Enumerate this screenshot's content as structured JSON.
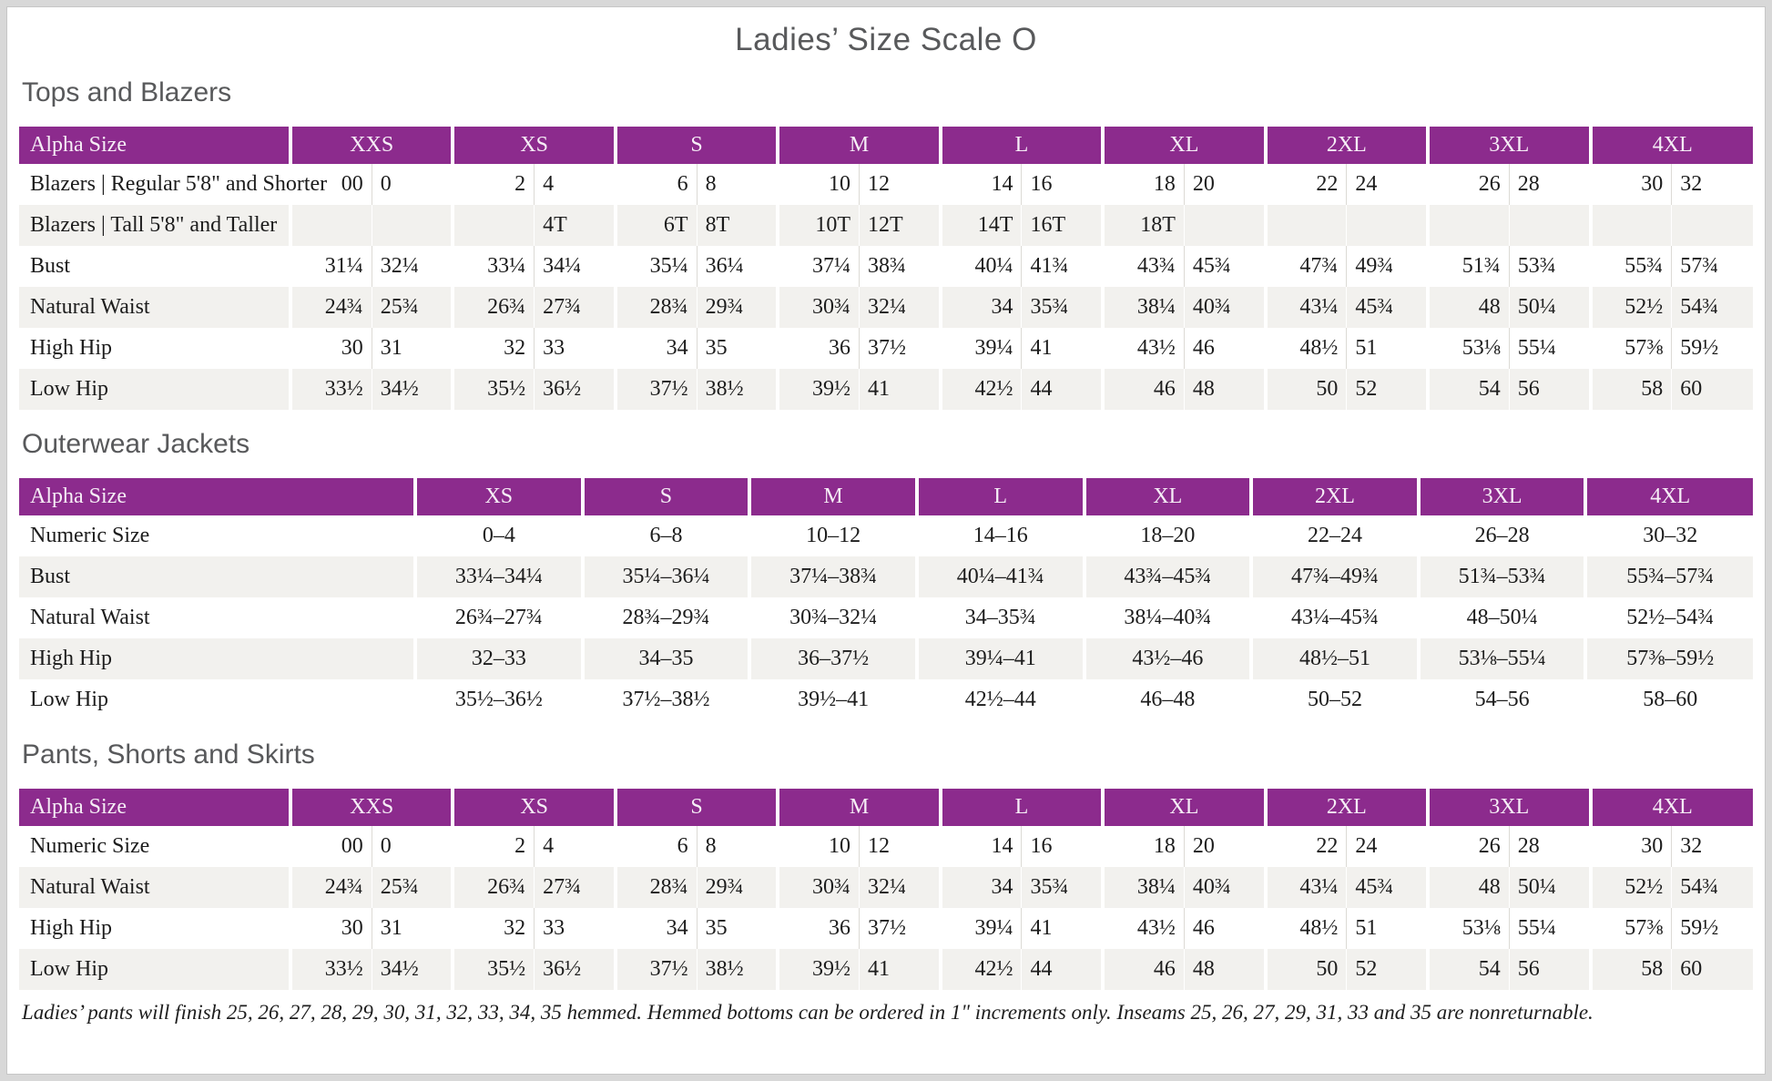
{
  "title": "Ladies’ Size Scale O",
  "accent_color": "#8c2b8d",
  "shade_row_color": "#f2f1ee",
  "tables": [
    {
      "heading": "Tops and Blazers",
      "type": "paired",
      "label_header": "Alpha Size",
      "sizes": [
        "XXS",
        "XS",
        "S",
        "M",
        "L",
        "XL",
        "2XL",
        "3XL",
        "4XL"
      ],
      "rows": [
        {
          "label": "Blazers | Regular 5'8\" and Shorter",
          "values": [
            [
              "00",
              "0"
            ],
            [
              "2",
              "4"
            ],
            [
              "6",
              "8"
            ],
            [
              "10",
              "12"
            ],
            [
              "14",
              "16"
            ],
            [
              "18",
              "20"
            ],
            [
              "22",
              "24"
            ],
            [
              "26",
              "28"
            ],
            [
              "30",
              "32"
            ]
          ]
        },
        {
          "label": "Blazers | Tall 5'8\" and Taller",
          "values": [
            [
              "",
              ""
            ],
            [
              "",
              "4T"
            ],
            [
              "6T",
              "8T"
            ],
            [
              "10T",
              "12T"
            ],
            [
              "14T",
              "16T"
            ],
            [
              "18T",
              ""
            ],
            [
              "",
              ""
            ],
            [
              "",
              ""
            ],
            [
              "",
              ""
            ]
          ]
        },
        {
          "label": "Bust",
          "values": [
            [
              "31¼",
              "32¼"
            ],
            [
              "33¼",
              "34¼"
            ],
            [
              "35¼",
              "36¼"
            ],
            [
              "37¼",
              "38¾"
            ],
            [
              "40¼",
              "41¾"
            ],
            [
              "43¾",
              "45¾"
            ],
            [
              "47¾",
              "49¾"
            ],
            [
              "51¾",
              "53¾"
            ],
            [
              "55¾",
              "57¾"
            ]
          ]
        },
        {
          "label": "Natural Waist",
          "values": [
            [
              "24¾",
              "25¾"
            ],
            [
              "26¾",
              "27¾"
            ],
            [
              "28¾",
              "29¾"
            ],
            [
              "30¾",
              "32¼"
            ],
            [
              "34",
              "35¾"
            ],
            [
              "38¼",
              "40¾"
            ],
            [
              "43¼",
              "45¾"
            ],
            [
              "48",
              "50¼"
            ],
            [
              "52½",
              "54¾"
            ]
          ]
        },
        {
          "label": "High Hip",
          "values": [
            [
              "30",
              "31"
            ],
            [
              "32",
              "33"
            ],
            [
              "34",
              "35"
            ],
            [
              "36",
              "37½"
            ],
            [
              "39¼",
              "41"
            ],
            [
              "43½",
              "46"
            ],
            [
              "48½",
              "51"
            ],
            [
              "53⅛",
              "55¼"
            ],
            [
              "57⅜",
              "59½"
            ]
          ]
        },
        {
          "label": "Low Hip",
          "values": [
            [
              "33½",
              "34½"
            ],
            [
              "35½",
              "36½"
            ],
            [
              "37½",
              "38½"
            ],
            [
              "39½",
              "41"
            ],
            [
              "42½",
              "44"
            ],
            [
              "46",
              "48"
            ],
            [
              "50",
              "52"
            ],
            [
              "54",
              "56"
            ],
            [
              "58",
              "60"
            ]
          ]
        }
      ]
    },
    {
      "heading": "Outerwear Jackets",
      "type": "single",
      "label_header": "Alpha Size",
      "sizes": [
        "XS",
        "S",
        "M",
        "L",
        "XL",
        "2XL",
        "3XL",
        "4XL"
      ],
      "rows": [
        {
          "label": "Numeric Size",
          "values": [
            "0–4",
            "6–8",
            "10–12",
            "14–16",
            "18–20",
            "22–24",
            "26–28",
            "30–32"
          ]
        },
        {
          "label": "Bust",
          "values": [
            "33¼–34¼",
            "35¼–36¼",
            "37¼–38¾",
            "40¼–41¾",
            "43¾–45¾",
            "47¾–49¾",
            "51¾–53¾",
            "55¾–57¾"
          ]
        },
        {
          "label": "Natural Waist",
          "values": [
            "26¾–27¾",
            "28¾–29¾",
            "30¾–32¼",
            "34–35¾",
            "38¼–40¾",
            "43¼–45¾",
            "48–50¼",
            "52½–54¾"
          ]
        },
        {
          "label": "High Hip",
          "values": [
            "32–33",
            "34–35",
            "36–37½",
            "39¼–41",
            "43½–46",
            "48½–51",
            "53⅛–55¼",
            "57⅜–59½"
          ]
        },
        {
          "label": "Low Hip",
          "values": [
            "35½–36½",
            "37½–38½",
            "39½–41",
            "42½–44",
            "46–48",
            "50–52",
            "54–56",
            "58–60"
          ]
        }
      ]
    },
    {
      "heading": "Pants, Shorts and Skirts",
      "type": "paired",
      "label_header": "Alpha Size",
      "sizes": [
        "XXS",
        "XS",
        "S",
        "M",
        "L",
        "XL",
        "2XL",
        "3XL",
        "4XL"
      ],
      "rows": [
        {
          "label": "Numeric Size",
          "values": [
            [
              "00",
              "0"
            ],
            [
              "2",
              "4"
            ],
            [
              "6",
              "8"
            ],
            [
              "10",
              "12"
            ],
            [
              "14",
              "16"
            ],
            [
              "18",
              "20"
            ],
            [
              "22",
              "24"
            ],
            [
              "26",
              "28"
            ],
            [
              "30",
              "32"
            ]
          ]
        },
        {
          "label": "Natural Waist",
          "values": [
            [
              "24¾",
              "25¾"
            ],
            [
              "26¾",
              "27¾"
            ],
            [
              "28¾",
              "29¾"
            ],
            [
              "30¾",
              "32¼"
            ],
            [
              "34",
              "35¾"
            ],
            [
              "38¼",
              "40¾"
            ],
            [
              "43¼",
              "45¾"
            ],
            [
              "48",
              "50¼"
            ],
            [
              "52½",
              "54¾"
            ]
          ]
        },
        {
          "label": "High Hip",
          "values": [
            [
              "30",
              "31"
            ],
            [
              "32",
              "33"
            ],
            [
              "34",
              "35"
            ],
            [
              "36",
              "37½"
            ],
            [
              "39¼",
              "41"
            ],
            [
              "43½",
              "46"
            ],
            [
              "48½",
              "51"
            ],
            [
              "53⅛",
              "55¼"
            ],
            [
              "57⅜",
              "59½"
            ]
          ]
        },
        {
          "label": "Low Hip",
          "values": [
            [
              "33½",
              "34½"
            ],
            [
              "35½",
              "36½"
            ],
            [
              "37½",
              "38½"
            ],
            [
              "39½",
              "41"
            ],
            [
              "42½",
              "44"
            ],
            [
              "46",
              "48"
            ],
            [
              "50",
              "52"
            ],
            [
              "54",
              "56"
            ],
            [
              "58",
              "60"
            ]
          ]
        }
      ]
    }
  ],
  "footnote": "Ladies’ pants will finish 25, 26, 27, 28, 29, 30, 31, 32, 33, 34, 35 hemmed. Hemmed bottoms can be ordered in 1\" increments only. Inseams 25, 26, 27, 29, 31, 33 and 35 are nonreturnable."
}
